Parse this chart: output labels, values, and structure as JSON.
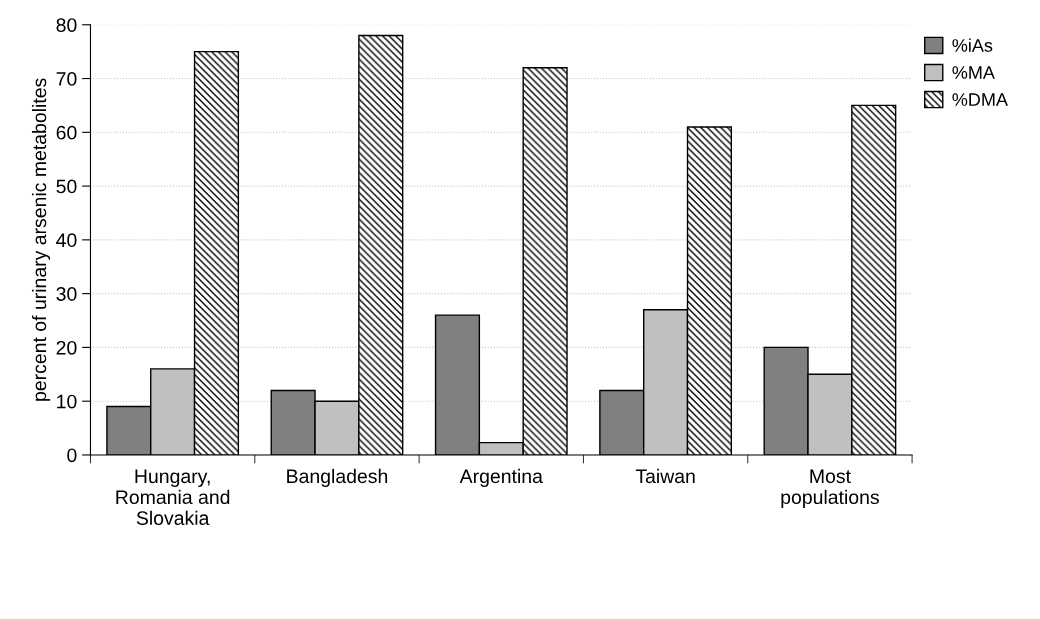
{
  "chart_data": {
    "type": "bar",
    "ylabel": "percent of urinary arsenic metabolites",
    "categories": [
      "Hungary,\nRomania and\nSlovakia",
      "Bangladesh",
      "Argentina",
      "Taiwan",
      "Most\npopulations"
    ],
    "series": [
      {
        "name": "%iAs",
        "color": "#808080",
        "values": [
          9,
          12,
          26,
          12,
          20
        ]
      },
      {
        "name": "%MA",
        "color": "#c0c0c0",
        "values": [
          16,
          10,
          2.3,
          27,
          15
        ]
      },
      {
        "name": "%DMA",
        "color": "#000000",
        "values": [
          75,
          78,
          72,
          61,
          65
        ]
      }
    ],
    "ylim": [
      0,
      80
    ],
    "yticks": [
      0,
      10,
      20,
      30,
      40,
      50,
      60,
      70,
      80
    ],
    "grid": "y",
    "legend": "right"
  }
}
